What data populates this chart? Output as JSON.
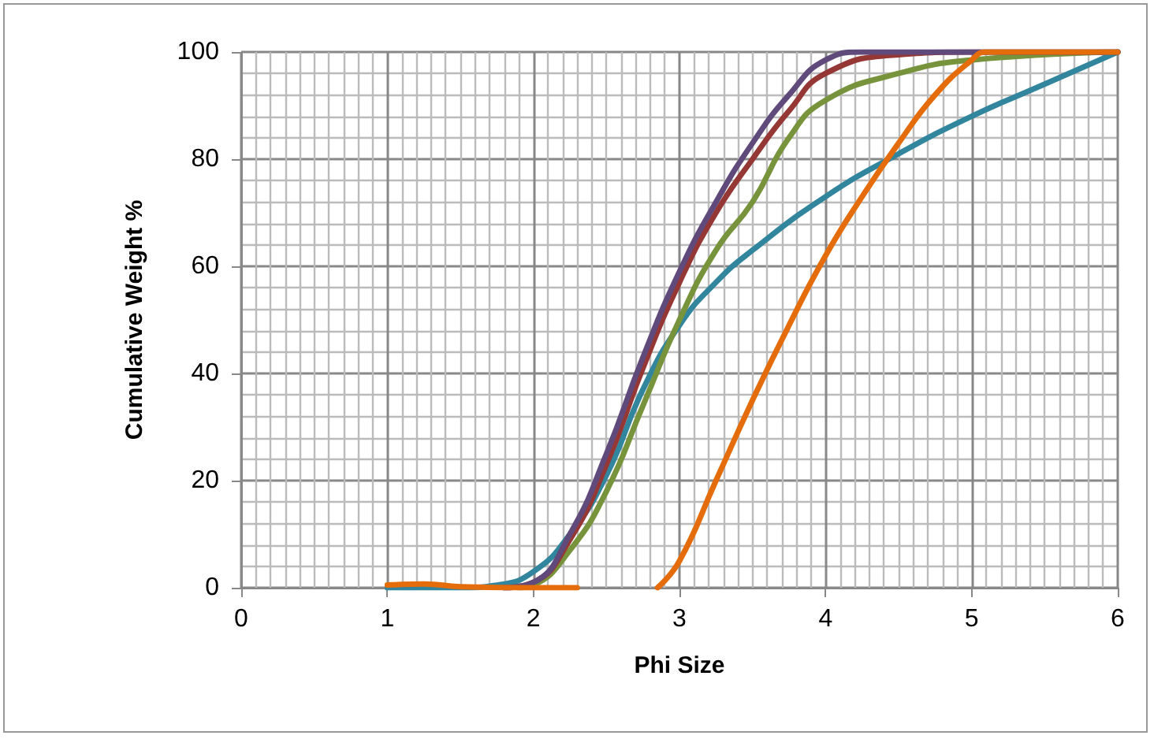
{
  "chart_data": {
    "type": "line",
    "xlabel": "Phi Size",
    "ylabel": "Cumulative Weight %",
    "xlim": [
      0,
      6
    ],
    "xticks": [
      0,
      1,
      2,
      3,
      4,
      5,
      6
    ],
    "ylim": [
      0,
      100
    ],
    "yticks": [
      0,
      20,
      40,
      60,
      80,
      100
    ],
    "grid": true,
    "marker": "none",
    "line_style": "solid",
    "series": [
      {
        "color": "#31859c",
        "x": [
          1,
          1.5,
          1.75,
          2,
          2.25,
          2.5,
          2.75,
          3,
          3.25,
          3.5,
          4,
          4.5,
          5,
          5.5,
          6
        ],
        "values": [
          0,
          0,
          0.5,
          3,
          10,
          21,
          37,
          49,
          57,
          63,
          73,
          81,
          88,
          94,
          100
        ]
      },
      {
        "color": "#77933c",
        "x": [
          1.9,
          2,
          2.25,
          2.5,
          2.75,
          3,
          3.25,
          3.5,
          3.75,
          4,
          4.5,
          5,
          6
        ],
        "values": [
          0,
          0.5,
          7,
          18,
          34,
          50,
          63,
          72,
          84,
          91,
          96,
          98.5,
          100
        ]
      },
      {
        "color": "#953735",
        "x": [
          1.8,
          2,
          2.25,
          2.5,
          2.75,
          3,
          3.25,
          3.5,
          3.75,
          4,
          4.5,
          5,
          6
        ],
        "values": [
          0,
          1,
          9,
          23,
          41,
          57,
          70,
          80,
          89,
          96,
          99.5,
          100,
          100
        ]
      },
      {
        "color": "#604a7b",
        "x": [
          1.8,
          2,
          2.25,
          2.5,
          2.75,
          3,
          3.25,
          3.5,
          3.75,
          4,
          4.25,
          5,
          6
        ],
        "values": [
          0,
          1,
          10,
          25,
          43,
          59,
          72,
          83,
          92,
          98.5,
          100,
          100,
          100
        ]
      },
      {
        "color": "#e46c0a",
        "x": [
          1,
          1.25,
          1.5,
          2,
          2.3,
          2.6,
          2.85,
          3,
          3.25,
          3.5,
          3.75,
          4,
          4.25,
          4.5,
          4.75,
          5,
          5.1,
          6
        ],
        "values": [
          0.5,
          0.7,
          0.2,
          0,
          0,
          null,
          0,
          5,
          20,
          35,
          49,
          62,
          73,
          83,
          92,
          98.5,
          100,
          100
        ]
      }
    ]
  }
}
